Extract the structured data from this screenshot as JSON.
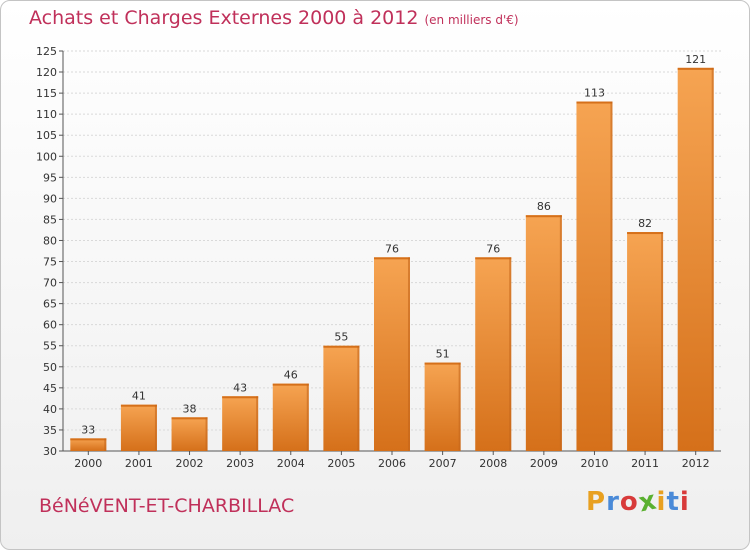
{
  "header": {
    "title": "Achats et Charges Externes 2000 à 2012",
    "subtitle": "(en milliers d'€)"
  },
  "footer": {
    "commune": "BéNéVENT-ET-CHARBILLAC",
    "logo_letters": [
      "P",
      "r",
      "o",
      "x",
      "i",
      "t",
      "i"
    ],
    "logo_colors": [
      "#e8a020",
      "#4a8ad8",
      "#d83a3a",
      "#5ab030",
      "#e8a020",
      "#4a8ad8",
      "#d83a3a"
    ]
  },
  "chart_data": {
    "type": "bar",
    "title": "Achats et Charges Externes 2000 à 2012",
    "subtitle": "(en milliers d'€)",
    "categories": [
      "2000",
      "2001",
      "2002",
      "2003",
      "2004",
      "2005",
      "2006",
      "2007",
      "2008",
      "2009",
      "2010",
      "2011",
      "2012"
    ],
    "values": [
      33,
      41,
      38,
      43,
      46,
      55,
      76,
      51,
      76,
      86,
      113,
      82,
      121
    ],
    "ylim": [
      30,
      125
    ],
    "yticks": [
      30,
      35,
      40,
      45,
      50,
      55,
      60,
      65,
      70,
      75,
      80,
      85,
      90,
      95,
      100,
      105,
      110,
      115,
      120,
      125
    ],
    "grid": true,
    "legend": "none",
    "bar_color": "#f0933a",
    "bar_color_dark": "#d87a20"
  }
}
